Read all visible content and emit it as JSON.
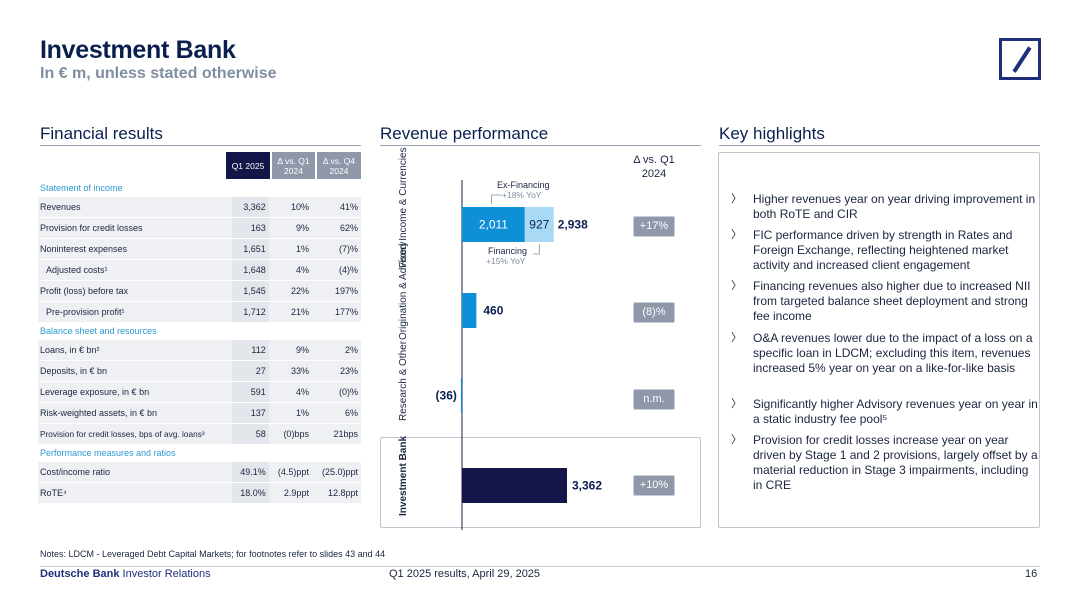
{
  "header": {
    "title": "Investment Bank",
    "subtitle": "In € m, unless stated otherwise"
  },
  "sections": {
    "financial": "Financial results",
    "revenue": "Revenue performance",
    "highlights": "Key highlights"
  },
  "table": {
    "columns": [
      "Q1 2025",
      "Δ vs. Q1 2024",
      "Δ vs. Q4 2024"
    ],
    "groups": [
      {
        "header": "Statement of income",
        "rows": [
          {
            "label": "Revenues",
            "values": [
              "3,362",
              "10%",
              "41%"
            ]
          },
          {
            "label": "Provision for credit losses",
            "values": [
              "163",
              "9%",
              "62%"
            ]
          },
          {
            "label": "Noninterest expenses",
            "values": [
              "1,651",
              "1%",
              "(7)%"
            ]
          },
          {
            "label": "Adjusted costs¹",
            "values": [
              "1,648",
              "4%",
              "(4)%"
            ],
            "indent": true
          },
          {
            "label": "Profit (loss) before tax",
            "values": [
              "1,545",
              "22%",
              "197%"
            ]
          },
          {
            "label": "Pre-provision profit¹",
            "values": [
              "1,712",
              "21%",
              "177%"
            ],
            "indent": true
          }
        ]
      },
      {
        "header": "Balance sheet and resources",
        "rows": [
          {
            "label": "Loans, in € bn²",
            "values": [
              "112",
              "9%",
              "2%"
            ]
          },
          {
            "label": "Deposits, in € bn",
            "values": [
              "27",
              "33%",
              "23%"
            ]
          },
          {
            "label": "Leverage exposure, in € bn",
            "values": [
              "591",
              "4%",
              "(0)%"
            ]
          },
          {
            "label": "Risk-weighted assets, in € bn",
            "values": [
              "137",
              "1%",
              "6%"
            ]
          },
          {
            "label": "Provision for credit losses, bps of avg. loans³",
            "values": [
              "58",
              "(0)bps",
              "21bps"
            ]
          }
        ]
      },
      {
        "header": "Performance measures and ratios",
        "rows": [
          {
            "label": "Cost/income ratio",
            "values": [
              "49.1%",
              "(4.5)ppt",
              "(25.0)ppt"
            ]
          },
          {
            "label": "RoTE⁴",
            "values": [
              "18.0%",
              "2.9ppt",
              "12.8ppt"
            ]
          }
        ]
      }
    ]
  },
  "chart_data": {
    "type": "bar",
    "orientation": "horizontal",
    "delta_header": "Δ vs. Q1 2024",
    "categories": [
      "Fixed Income & Currencies",
      "Origination & Advisory",
      "Research & Other",
      "Investment Bank"
    ],
    "totals": [
      2938,
      460,
      -36,
      3362
    ],
    "total_labels": [
      "2,938",
      "460",
      "(36)",
      "3,362"
    ],
    "deltas": [
      "+17%",
      "(8)%",
      "n.m.",
      "+10%"
    ],
    "fic_split": {
      "ex_financing": {
        "value": 2011,
        "label": "2,011",
        "annotation": "Ex-Financing",
        "yoy": "+18% YoY"
      },
      "financing": {
        "value": 927,
        "label": "927",
        "annotation": "Financing",
        "yoy": "+15% YoY"
      }
    },
    "colors": {
      "ex_financing": "#0f8fd8",
      "financing": "#a8daf5",
      "segment": "#0f8fd8",
      "total": "#14164a",
      "delta_pill": "#8e98a8"
    }
  },
  "highlights": [
    "Higher revenues year on year driving improvement in both RoTE and CIR",
    "FIC performance driven by strength in Rates and Foreign Exchange, reflecting heightened market activity and increased client engagement",
    "Financing revenues also higher due to increased NII from targeted balance sheet deployment and strong fee income",
    "O&A revenues lower due to the impact of a loss on a specific loan in LDCM; excluding this item, revenues increased 5% year on year on a like-for-like basis",
    "Significantly higher Advisory revenues year on year in a static industry fee pool⁵",
    "Provision for credit losses increase year on year driven by Stage 1 and 2 provisions, largely offset by a material reduction in Stage 3 impairments, including in CRE"
  ],
  "footer": {
    "notes": "Notes: LDCM - Leveraged Debt Capital Markets; for footnotes refer to slides 43 and 44",
    "brand_bold": "Deutsche Bank",
    "brand_rest": " Investor Relations",
    "center": "Q1 2025 results, April 29, 2025",
    "page": "16"
  }
}
